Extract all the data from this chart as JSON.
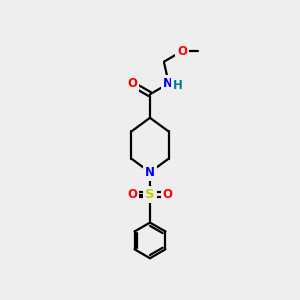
{
  "background_color": "#eeeeee",
  "line_color": "#000000",
  "atom_colors": {
    "O": "#ff0000",
    "N": "#0000ff",
    "S": "#cccc00",
    "H": "#008080",
    "C": "#000000"
  },
  "font_size": 8.5,
  "line_width": 1.6,
  "fig_width": 3.0,
  "fig_height": 3.0,
  "dpi": 100
}
